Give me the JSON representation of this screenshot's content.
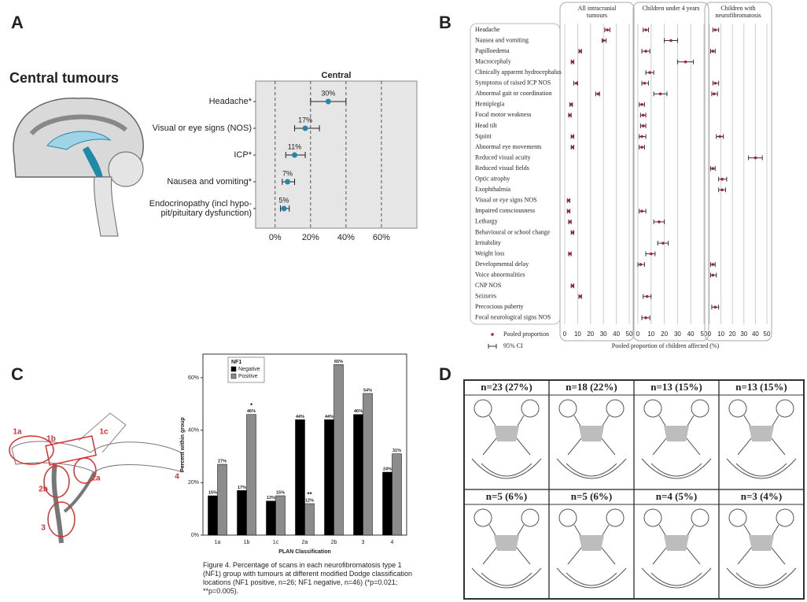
{
  "panel_letters": [
    "A",
    "B",
    "C",
    "D"
  ],
  "panel_a_heading": "Central tumours",
  "chart_data": [
    {
      "type": "dotplot",
      "title": "Central",
      "categories": [
        "Headache*",
        "Visual or eye signs (NOS)",
        "ICP*",
        "Nausea and vomiting*",
        "Endocrinopathy (incl hypo-\npit/pituitary dysfunction)"
      ],
      "values": [
        30,
        17,
        11,
        7,
        5
      ],
      "value_labels": [
        "30%",
        "17%",
        "11%",
        "7%",
        "5%"
      ],
      "ci_low": [
        20,
        11,
        6,
        4,
        3
      ],
      "ci_high": [
        40,
        25,
        17,
        11,
        8
      ],
      "color": "#2a86a8",
      "xlim": [
        -11,
        80
      ],
      "xticks": [
        {
          "value": 0,
          "label": "0%"
        },
        {
          "value": 20,
          "label": "20%"
        },
        {
          "value": 40,
          "label": "40%"
        },
        {
          "value": 60,
          "label": "60%"
        }
      ],
      "grid": true
    },
    {
      "type": "forest",
      "categories": [
        "Headache",
        "Nausea and vomiting",
        "Papilloedema",
        "Macrocephaly",
        "Clinically apparent hydrocephalus",
        "Symptoms of raised ICP NOS",
        "Abnormal gait or coordination",
        "Hemiplegia",
        "Focal motor weakness",
        "Head tilt",
        "Squint",
        "Abnormal eye movements",
        "Reduced visual acuity",
        "Reduced visual fields",
        "Optic atrophy",
        "Exophthalmia",
        "Visual or eye signs NOS",
        "Impaired consciousness",
        "Lethargy",
        "Behavioural or school change",
        "Irritability",
        "Weight loss",
        "Developmental delay",
        "Voice abnormalities",
        "CNP NOS",
        "Seizures",
        "Precocious puberty",
        "Focal neurological signs NOS"
      ],
      "series": [
        {
          "name": "All intracranial\ntumours",
          "color": "#b5173d",
          "values": [
            33,
            30,
            12,
            6,
            null,
            9,
            26,
            5,
            4,
            null,
            6,
            6,
            null,
            null,
            null,
            null,
            3,
            3,
            4,
            6,
            null,
            4,
            null,
            null,
            6,
            12,
            null,
            null
          ],
          "ci_low": [
            31,
            29,
            11,
            5,
            null,
            7,
            24,
            4,
            3,
            null,
            5,
            5,
            null,
            null,
            null,
            null,
            2,
            2,
            3,
            5,
            null,
            3,
            null,
            null,
            5,
            11,
            null,
            null
          ],
          "ci_high": [
            35,
            32,
            13,
            7,
            null,
            10,
            27,
            6,
            5,
            null,
            7,
            7,
            null,
            null,
            null,
            null,
            4,
            4,
            5,
            7,
            null,
            5,
            null,
            null,
            7,
            13,
            null,
            null
          ]
        },
        {
          "name": "Children under 4 years",
          "color": "#b5173d",
          "values": [
            6,
            25,
            6,
            36,
            9,
            5,
            17,
            3,
            4,
            4,
            3,
            3,
            null,
            null,
            null,
            null,
            null,
            3,
            16,
            null,
            19,
            10,
            2,
            null,
            null,
            7,
            null,
            6
          ],
          "ci_low": [
            4,
            20,
            3,
            30,
            6,
            3,
            12,
            1,
            2,
            2,
            1,
            1,
            null,
            null,
            null,
            null,
            null,
            1,
            12,
            null,
            15,
            6,
            0,
            null,
            null,
            4,
            null,
            3
          ],
          "ci_high": [
            8,
            30,
            9,
            42,
            12,
            8,
            22,
            5,
            6,
            6,
            6,
            5,
            null,
            null,
            null,
            null,
            null,
            6,
            20,
            null,
            23,
            13,
            5,
            null,
            null,
            10,
            null,
            9
          ]
        },
        {
          "name": "Children with\nneurofibromatosis",
          "color": "#b5173d",
          "values": [
            5,
            null,
            3,
            null,
            null,
            5,
            4,
            null,
            null,
            null,
            9,
            null,
            40,
            3,
            11,
            11,
            null,
            null,
            null,
            null,
            null,
            null,
            3,
            3,
            null,
            null,
            5,
            null
          ],
          "ci_low": [
            3,
            null,
            1,
            null,
            null,
            3,
            2,
            null,
            null,
            null,
            6,
            null,
            34,
            1,
            8,
            8,
            null,
            null,
            null,
            null,
            null,
            null,
            1,
            1,
            null,
            null,
            2,
            null
          ],
          "ci_high": [
            8,
            null,
            5,
            null,
            null,
            8,
            7,
            null,
            null,
            null,
            12,
            null,
            46,
            5,
            15,
            14,
            null,
            null,
            null,
            null,
            null,
            null,
            5,
            6,
            null,
            null,
            8,
            null
          ]
        }
      ],
      "ci_color": "#333333",
      "xlim": [
        0,
        50
      ],
      "xticks": [
        0,
        10,
        20,
        30,
        40,
        50
      ],
      "x_label": "Pooled proportion of children affected (%)",
      "legend_labels": [
        "Pooled proportion",
        "95% CI"
      ],
      "grid": true
    },
    {
      "type": "bar",
      "categories": [
        "1a",
        "1b",
        "1c",
        "2a",
        "2b",
        "3",
        "4"
      ],
      "series": [
        {
          "name": "Negative",
          "color": "#000000",
          "values": [
            15,
            17,
            13,
            44,
            44,
            46,
            24
          ],
          "value_labels": [
            "15%",
            "17%",
            "13%",
            "44%",
            "44%",
            "46%",
            "24%"
          ]
        },
        {
          "name": "Positive",
          "color": "#8c8c8c",
          "values": [
            27,
            46,
            15,
            12,
            65,
            54,
            31
          ],
          "value_labels": [
            "27%",
            "46%",
            "15%",
            "12%",
            "65%",
            "54%",
            "31%"
          ]
        }
      ],
      "annotations": [
        {
          "text": "*",
          "category": "1b",
          "series": "Positive"
        },
        {
          "text": "**",
          "category": "2a",
          "series": "Positive"
        }
      ],
      "legend_title": "NF1",
      "ylim": [
        0,
        69
      ],
      "yticks": [
        {
          "value": 0,
          "label": "0%"
        },
        {
          "value": 20,
          "label": "20%"
        },
        {
          "value": 40,
          "label": "40%"
        },
        {
          "value": 60,
          "label": "60%"
        }
      ],
      "x_label": "PLAN Classification",
      "y_label": "Percent within group"
    }
  ],
  "caption": "Figure 4. Percentage of scans in each neurofibromatosis type 1 (NF1) group with tumours at different modified Dodge classification locations (NF1 positive, n=26; NF1 negative, n=46) (*p=0.021; **p=0.005).",
  "panel_c_diagram_labels": [
    "1a",
    "1b",
    "1c",
    "2a",
    "2b",
    "3",
    "4"
  ],
  "panel_d": {
    "cells": [
      "n=23 (27%)",
      "n=18 (22%)",
      "n=13 (15%)",
      "n=13 (15%)",
      "n=5 (6%)",
      "n=5 (6%)",
      "n=4 (5%)",
      "n=3 (4%)"
    ]
  }
}
